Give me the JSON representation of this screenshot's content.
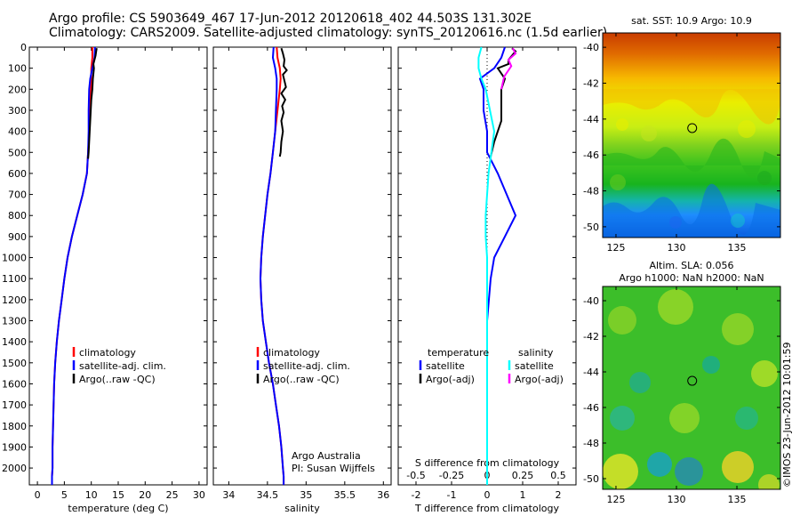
{
  "header": {
    "title_line1": "Argo profile: CS 5903649_467 17-Jun-2012 20120618_402 44.503S 131.302E",
    "title_line2": "Climatology: CARS2009. Satellite-adjusted climatology: synTS_20120616.nc (1.5d earlier)"
  },
  "colors": {
    "climatology": "#ff0000",
    "satellite": "#0000ff",
    "argo": "#000000",
    "salinity_satellite": "#00ffff",
    "salinity_argo": "#ff00ff"
  },
  "chart_data": [
    {
      "type": "line",
      "id": "temperature",
      "xlabel": "temperature (deg C)",
      "ylabel": "",
      "xlim": [
        -1.5,
        31.5
      ],
      "ylim": [
        2080,
        0
      ],
      "xticks": [
        0,
        5,
        10,
        15,
        20,
        25,
        30
      ],
      "yticks": [
        0,
        100,
        200,
        300,
        400,
        500,
        600,
        700,
        800,
        900,
        1000,
        1100,
        1200,
        1300,
        1400,
        1500,
        1600,
        1700,
        1800,
        1900,
        2000
      ],
      "legend": [
        "climatology",
        "satellite-adj. clim.",
        "Argo(..raw -QC)"
      ],
      "series": [
        {
          "name": "climatology",
          "color": "#ff0000",
          "x": [
            10.2,
            10.2,
            10.0,
            10.0,
            9.9,
            9.8,
            9.6,
            9.4,
            9.2,
            8.4,
            7.4,
            6.4,
            5.6,
            5.0,
            4.5,
            4.0,
            3.6,
            3.3,
            3.1,
            3.0,
            2.9,
            2.8,
            2.8,
            2.7,
            2.7
          ],
          "y": [
            0,
            50,
            100,
            150,
            200,
            300,
            400,
            500,
            600,
            700,
            800,
            900,
            1000,
            1100,
            1200,
            1300,
            1400,
            1500,
            1600,
            1700,
            1800,
            1900,
            2000,
            2040,
            2080
          ]
        },
        {
          "name": "satellite-adj. clim.",
          "color": "#0000ff",
          "x": [
            10.7,
            10.6,
            10.2,
            9.8,
            9.6,
            9.5,
            9.5,
            9.4,
            9.2,
            8.4,
            7.4,
            6.4,
            5.6,
            5.0,
            4.5,
            4.0,
            3.6,
            3.3,
            3.1,
            3.0,
            2.9,
            2.8,
            2.8,
            2.7,
            2.7
          ],
          "y": [
            0,
            50,
            100,
            150,
            200,
            300,
            400,
            500,
            600,
            700,
            800,
            900,
            1000,
            1100,
            1200,
            1300,
            1400,
            1500,
            1600,
            1700,
            1800,
            1900,
            2000,
            2040,
            2080
          ]
        },
        {
          "name": "Argo(..raw -QC)",
          "color": "#000000",
          "x": [
            11.0,
            10.9,
            10.8,
            10.6,
            10.4,
            10.5,
            10.3,
            10.2,
            10.0,
            9.9,
            9.8,
            9.7,
            9.6,
            9.5,
            9.4
          ],
          "y": [
            5,
            20,
            40,
            60,
            80,
            100,
            150,
            200,
            250,
            300,
            350,
            400,
            450,
            500,
            530
          ]
        }
      ]
    },
    {
      "type": "line",
      "id": "salinity",
      "xlabel": "salinity",
      "ylabel": "",
      "xlim": [
        33.8,
        36.1
      ],
      "ylim": [
        2080,
        0
      ],
      "xticks": [
        34,
        34.5,
        35,
        35.5,
        36
      ],
      "legend": [
        "climatology",
        "satellite-adj. clim.",
        "Argo(..raw -QC)"
      ],
      "annotation": [
        "Argo Australia",
        "PI: Susan Wijffels"
      ],
      "series": [
        {
          "name": "climatology",
          "color": "#ff0000",
          "x": [
            34.62,
            34.63,
            34.66,
            34.67,
            34.66,
            34.63,
            34.6,
            34.57,
            34.54,
            34.5,
            34.47,
            34.44,
            34.42,
            34.41,
            34.42,
            34.44,
            34.48,
            34.52,
            34.57,
            34.61,
            34.65,
            34.68,
            34.7,
            34.71,
            34.71
          ],
          "y": [
            0,
            50,
            100,
            150,
            200,
            300,
            400,
            500,
            600,
            700,
            800,
            900,
            1000,
            1100,
            1200,
            1300,
            1400,
            1500,
            1600,
            1700,
            1800,
            1900,
            2000,
            2040,
            2080
          ]
        },
        {
          "name": "satellite-adj. clim.",
          "color": "#0000ff",
          "x": [
            34.58,
            34.57,
            34.6,
            34.62,
            34.62,
            34.61,
            34.6,
            34.57,
            34.54,
            34.5,
            34.47,
            34.44,
            34.42,
            34.41,
            34.42,
            34.44,
            34.48,
            34.52,
            34.57,
            34.61,
            34.65,
            34.68,
            34.7,
            34.71,
            34.71
          ],
          "y": [
            0,
            50,
            100,
            150,
            200,
            300,
            400,
            500,
            600,
            700,
            800,
            900,
            1000,
            1100,
            1200,
            1300,
            1400,
            1500,
            1600,
            1700,
            1800,
            1900,
            2000,
            2040,
            2080
          ]
        },
        {
          "name": "Argo(..raw -QC)",
          "color": "#000000",
          "x": [
            34.68,
            34.7,
            34.72,
            34.71,
            34.75,
            34.7,
            34.72,
            34.74,
            34.68,
            34.73,
            34.69,
            34.71,
            34.68,
            34.7,
            34.68,
            34.67,
            34.66
          ],
          "y": [
            5,
            30,
            60,
            90,
            110,
            130,
            160,
            190,
            220,
            250,
            280,
            310,
            350,
            400,
            450,
            500,
            520
          ]
        }
      ]
    },
    {
      "type": "line",
      "id": "difference",
      "xlabel": "T difference from climatology",
      "xlabel_top": "S difference from climatology",
      "xlim": [
        -2.5,
        2.5
      ],
      "ylim": [
        2080,
        0
      ],
      "xticks": [
        -2,
        -1,
        0,
        1,
        2
      ],
      "xticklabels": [
        "-2",
        "-1",
        "0",
        "1",
        "2"
      ],
      "s_ticks": [
        -0.5,
        -0.25,
        0,
        0.25,
        0.5
      ],
      "s_ticklabels": [
        "-0.5",
        "-0.25",
        "0",
        "0.25",
        "0.5"
      ],
      "legend_temperature": {
        "title": "temperature",
        "entries": [
          "satellite",
          "Argo(-adj)"
        ]
      },
      "legend_salinity": {
        "title": "salinity",
        "entries": [
          "satellite",
          "Argo(-adj)"
        ]
      },
      "series": [
        {
          "name": "temperature satellite",
          "color": "#0000ff",
          "x": [
            0.5,
            0.4,
            0.2,
            -0.2,
            -0.1,
            -0.1,
            -0.1,
            0.0,
            0.0,
            0.3,
            0.8,
            0.5,
            0.2,
            0.1,
            0.05,
            0.0,
            0.0,
            0.0,
            0.0,
            0.0,
            0.0,
            0.0
          ],
          "y": [
            0,
            50,
            100,
            150,
            200,
            250,
            300,
            400,
            500,
            600,
            800,
            900,
            1000,
            1100,
            1200,
            1300,
            1400,
            1500,
            1600,
            1800,
            2000,
            2080
          ]
        },
        {
          "name": "temperature Argo(-adj)",
          "color": "#000000",
          "x": [
            0.7,
            0.8,
            0.7,
            0.6,
            0.6,
            0.3,
            0.5,
            0.4,
            0.4,
            0.4,
            0.4,
            0.3,
            0.2,
            0.1
          ],
          "y": [
            5,
            20,
            40,
            60,
            80,
            100,
            150,
            200,
            250,
            300,
            350,
            400,
            450,
            520
          ]
        },
        {
          "name": "salinity satellite",
          "color": "#00ffff",
          "x": [
            -0.04,
            -0.06,
            -0.06,
            -0.04,
            -0.01,
            0.02,
            0.05,
            0.03,
            0.01,
            0.0,
            -0.01,
            -0.01,
            0.0,
            0.0,
            0.0,
            0.0,
            0.0,
            0.0
          ],
          "y": [
            0,
            50,
            100,
            150,
            200,
            300,
            400,
            500,
            600,
            700,
            800,
            900,
            1000,
            1200,
            1400,
            1600,
            1800,
            2080
          ]
        },
        {
          "name": "salinity Argo(-adj)",
          "color": "#ff00ff",
          "x": [
            0.18,
            0.2,
            0.15,
            0.17,
            0.12,
            0.1
          ],
          "y": [
            5,
            30,
            60,
            90,
            140,
            200
          ]
        }
      ]
    },
    {
      "type": "heatmap",
      "id": "sst-map",
      "title": "sat. SST: 10.9 Argo: 10.9",
      "xlim": [
        123.9,
        138.6
      ],
      "ylim": [
        -50.6,
        -39.2
      ],
      "xticks": [
        125,
        130,
        135
      ],
      "yticks": [
        -40,
        -42,
        -44,
        -46,
        -48,
        -50
      ],
      "marker": {
        "lon": 131.302,
        "lat": -44.503
      }
    },
    {
      "type": "heatmap",
      "id": "sla-map",
      "title_line1": "Altim. SLA: 0.056",
      "title_line2": "Argo h1000: NaN h2000: NaN",
      "xlim": [
        123.9,
        138.6
      ],
      "ylim": [
        -50.6,
        -39.2
      ],
      "xticks": [
        125,
        130,
        135
      ],
      "yticks": [
        -40,
        -42,
        -44,
        -46,
        -48,
        -50
      ],
      "marker": {
        "lon": 131.302,
        "lat": -44.503
      }
    }
  ],
  "footer": {
    "stamp": "©IMOS 23-Jun-2012 10:01:59"
  }
}
